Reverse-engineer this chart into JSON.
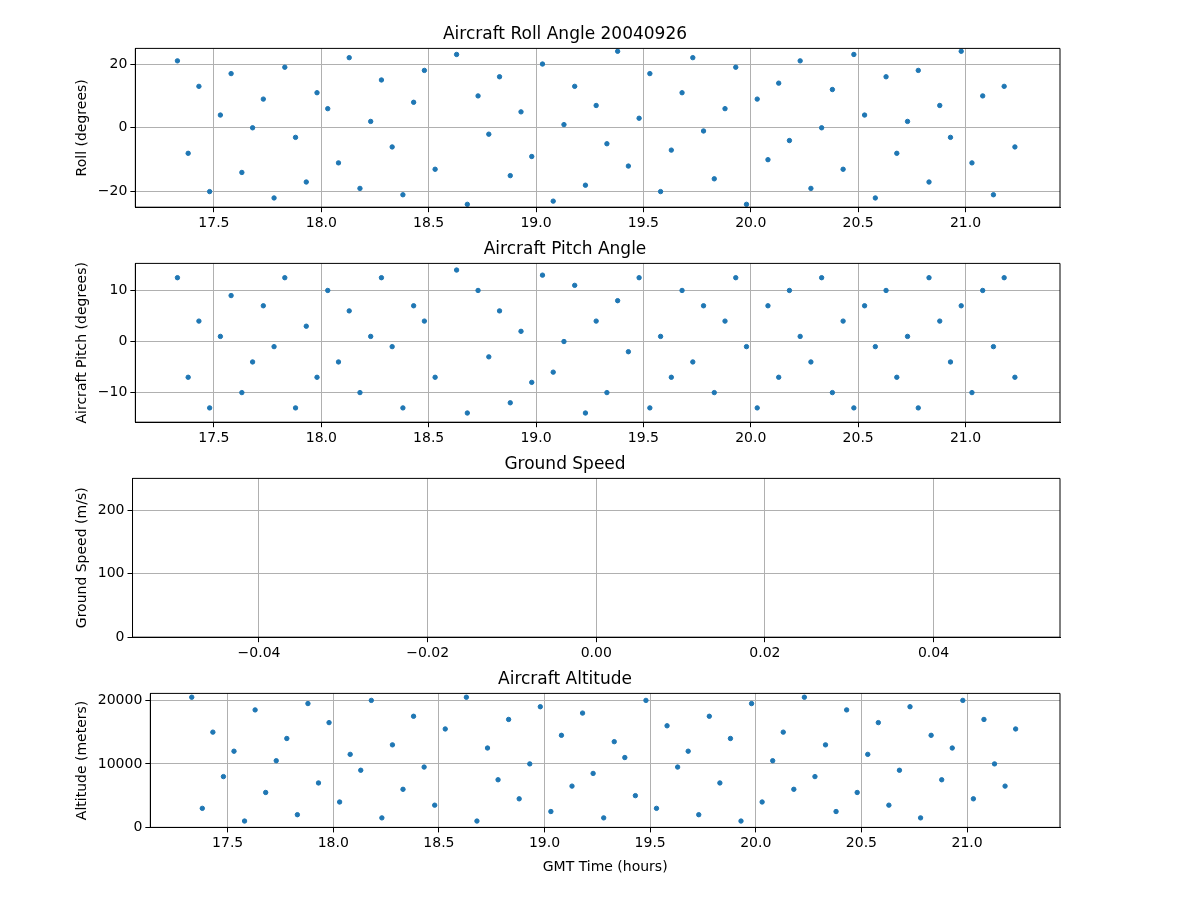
{
  "chart_data": [
    {
      "type": "scatter",
      "title": "Aircraft Roll Angle 20040926",
      "ylabel": "Roll (degrees)",
      "color": "#1f77b4",
      "marker": "circle",
      "grid": true,
      "x": [
        17.33,
        17.38,
        17.43,
        17.48,
        17.53,
        17.58,
        17.63,
        17.68,
        17.73,
        17.78,
        17.83,
        17.88,
        17.93,
        17.98,
        18.03,
        18.08,
        18.13,
        18.18,
        18.23,
        18.28,
        18.33,
        18.38,
        18.43,
        18.48,
        18.53,
        18.63,
        18.68,
        18.73,
        18.78,
        18.83,
        18.88,
        18.93,
        18.98,
        19.03,
        19.08,
        19.13,
        19.18,
        19.23,
        19.28,
        19.33,
        19.38,
        19.43,
        19.48,
        19.53,
        19.58,
        19.63,
        19.68,
        19.73,
        19.78,
        19.83,
        19.88,
        19.93,
        19.98,
        20.03,
        20.08,
        20.13,
        20.18,
        20.23,
        20.28,
        20.33,
        20.38,
        20.43,
        20.48,
        20.53,
        20.58,
        20.63,
        20.68,
        20.73,
        20.78,
        20.83,
        20.88,
        20.93,
        20.98,
        21.03,
        21.08,
        21.13,
        21.18,
        21.23
      ],
      "values": [
        21,
        -8,
        13,
        -20,
        4,
        17,
        -14,
        0,
        9,
        -22,
        19,
        -3,
        -17,
        11,
        6,
        -11,
        22,
        -19,
        2,
        15,
        -6,
        -21,
        8,
        18,
        -13,
        23,
        -24,
        10,
        -2,
        16,
        -15,
        5,
        -9,
        20,
        -23,
        1,
        13,
        -18,
        7,
        -5,
        24,
        -12,
        3,
        17,
        -20,
        -7,
        11,
        22,
        -1,
        -16,
        6,
        19,
        -24,
        9,
        -10,
        14,
        -4,
        21,
        -19,
        0,
        12,
        -13,
        23,
        4,
        -22,
        16,
        -8,
        2,
        18,
        -17,
        7,
        -3,
        24,
        -11,
        10,
        -21,
        13,
        -6
      ],
      "xlim": [
        17.134,
        21.44
      ],
      "xticks": [
        17.5,
        {
          "value": 18,
          "label": "18.0"
        },
        18.5,
        {
          "value": 19,
          "label": "19.0"
        },
        19.5,
        {
          "value": 20,
          "label": "20.0"
        },
        20.5,
        {
          "value": 21,
          "label": "21.0"
        }
      ],
      "ylim": [
        -24.9,
        24.9
      ],
      "yticks": [
        {
          "value": -20,
          "label": "−20"
        },
        0,
        20
      ]
    },
    {
      "type": "scatter",
      "title": "Aircraft Pitch Angle",
      "ylabel": "Aircraft Pitch (degrees)",
      "color": "#1f77b4",
      "marker": "circle",
      "grid": true,
      "x": [
        17.33,
        17.38,
        17.43,
        17.48,
        17.53,
        17.58,
        17.63,
        17.68,
        17.73,
        17.78,
        17.83,
        17.88,
        17.93,
        17.98,
        18.03,
        18.08,
        18.13,
        18.18,
        18.23,
        18.28,
        18.33,
        18.38,
        18.43,
        18.48,
        18.53,
        18.63,
        18.68,
        18.73,
        18.78,
        18.83,
        18.88,
        18.93,
        18.98,
        19.03,
        19.08,
        19.13,
        19.18,
        19.23,
        19.28,
        19.33,
        19.38,
        19.43,
        19.48,
        19.53,
        19.58,
        19.63,
        19.68,
        19.73,
        19.78,
        19.83,
        19.88,
        19.93,
        19.98,
        20.03,
        20.08,
        20.13,
        20.18,
        20.23,
        20.28,
        20.33,
        20.38,
        20.43,
        20.48,
        20.53,
        20.58,
        20.63,
        20.68,
        20.73,
        20.78,
        20.83,
        20.88,
        20.93,
        20.98,
        21.03,
        21.08,
        21.13,
        21.18,
        21.23
      ],
      "values": [
        12.5,
        -7,
        4,
        -13,
        1,
        9,
        -10,
        -4,
        7,
        -1,
        12.5,
        -13,
        3,
        -7,
        10,
        -4,
        6,
        -10,
        1,
        12.5,
        -1,
        -13,
        7,
        4,
        -7,
        14,
        -14,
        10,
        -3,
        6,
        -12,
        2,
        -8,
        13,
        -6,
        0,
        11,
        -14,
        4,
        -10,
        8,
        -2,
        12.5,
        -13,
        1,
        -7,
        10,
        -4,
        7,
        -10,
        4,
        12.5,
        -1,
        -13,
        7,
        -7,
        10,
        1,
        -4,
        12.5,
        -10,
        4,
        -13,
        7,
        -1,
        10,
        -7,
        1,
        -13,
        12.5,
        4,
        -4,
        7,
        -10,
        10,
        -1,
        12.5,
        -7
      ],
      "xlim": [
        17.134,
        21.44
      ],
      "xticks": [
        17.5,
        {
          "value": 18,
          "label": "18.0"
        },
        18.5,
        {
          "value": 19,
          "label": "19.0"
        },
        19.5,
        {
          "value": 20,
          "label": "20.0"
        },
        20.5,
        {
          "value": 21,
          "label": "21.0"
        }
      ],
      "ylim": [
        -15.8,
        15.3
      ],
      "yticks": [
        {
          "value": -10,
          "label": "−10"
        },
        0,
        10
      ]
    },
    {
      "type": "scatter",
      "title": "Ground Speed",
      "ylabel": "Ground Speed (m/s)",
      "color": "#1f77b4",
      "marker": "circle",
      "grid": true,
      "xlim": [
        -0.055,
        0.055
      ],
      "xticks": [
        {
          "value": -0.04,
          "label": "−0.04"
        },
        {
          "value": -0.02,
          "label": "−0.02"
        },
        {
          "value": 0,
          "label": "0.00"
        },
        0.02,
        0.04
      ],
      "ylim": [
        0,
        250
      ],
      "yticks": [
        0,
        100,
        200
      ]
    },
    {
      "type": "scatter",
      "title": "Aircraft Altitude",
      "xlabel": "GMT Time (hours)",
      "ylabel": "Altitude (meters)",
      "color": "#1f77b4",
      "marker": "circle",
      "grid": true,
      "x": [
        17.33,
        17.38,
        17.43,
        17.48,
        17.53,
        17.58,
        17.63,
        17.68,
        17.73,
        17.78,
        17.83,
        17.88,
        17.93,
        17.98,
        18.03,
        18.08,
        18.13,
        18.18,
        18.23,
        18.28,
        18.33,
        18.38,
        18.43,
        18.48,
        18.53,
        18.63,
        18.68,
        18.73,
        18.78,
        18.83,
        18.88,
        18.93,
        18.98,
        19.03,
        19.08,
        19.13,
        19.18,
        19.23,
        19.28,
        19.33,
        19.38,
        19.43,
        19.48,
        19.53,
        19.58,
        19.63,
        19.68,
        19.73,
        19.78,
        19.83,
        19.88,
        19.93,
        19.98,
        20.03,
        20.08,
        20.13,
        20.18,
        20.23,
        20.28,
        20.33,
        20.38,
        20.43,
        20.48,
        20.53,
        20.58,
        20.63,
        20.68,
        20.73,
        20.78,
        20.83,
        20.88,
        20.93,
        20.98,
        21.03,
        21.08,
        21.13,
        21.18,
        21.23
      ],
      "values": [
        20500,
        3000,
        15000,
        8000,
        12000,
        1000,
        18500,
        5500,
        10500,
        14000,
        2000,
        19500,
        7000,
        16500,
        4000,
        11500,
        9000,
        20000,
        1500,
        13000,
        6000,
        17500,
        9500,
        3500,
        15500,
        20500,
        1000,
        12500,
        7500,
        17000,
        4500,
        10000,
        19000,
        2500,
        14500,
        6500,
        18000,
        8500,
        1500,
        13500,
        11000,
        5000,
        20000,
        3000,
        16000,
        9500,
        12000,
        2000,
        17500,
        7000,
        14000,
        1000,
        19500,
        4000,
        10500,
        15000,
        6000,
        20500,
        8000,
        13000,
        2500,
        18500,
        5500,
        11500,
        16500,
        3500,
        9000,
        19000,
        1500,
        14500,
        7500,
        12500,
        20000,
        4500,
        17000,
        10000,
        6500,
        15500
      ],
      "xlim": [
        17.134,
        21.44
      ],
      "xticks": [
        17.5,
        {
          "value": 18,
          "label": "18.0"
        },
        18.5,
        {
          "value": 19,
          "label": "19.0"
        },
        19.5,
        {
          "value": 20,
          "label": "20.0"
        },
        20.5,
        {
          "value": 21,
          "label": "21.0"
        }
      ],
      "ylim": [
        0,
        21100
      ],
      "yticks": [
        0,
        10000,
        20000
      ]
    }
  ]
}
